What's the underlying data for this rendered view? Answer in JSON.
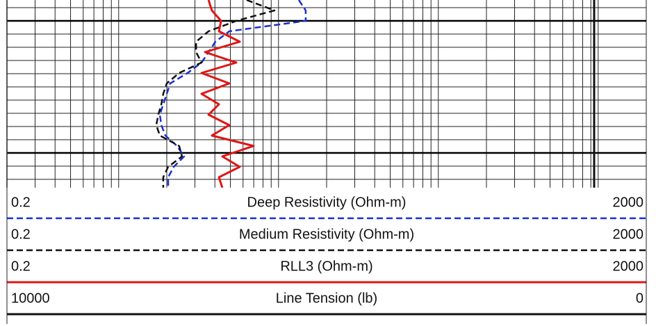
{
  "chart_data": {
    "type": "line",
    "xscale": "log",
    "xlim": [
      0.2,
      2000
    ],
    "xgrid": [
      0.2,
      0.3,
      0.4,
      0.5,
      0.6,
      0.7,
      0.8,
      0.9,
      1,
      2,
      3,
      4,
      5,
      6,
      7,
      8,
      9,
      10,
      20,
      30,
      40,
      50,
      60,
      70,
      80,
      90,
      100,
      200,
      300,
      400,
      500,
      600,
      700,
      800,
      900,
      1000,
      2000
    ],
    "ylim": [
      0,
      270
    ],
    "ygrid": [
      11,
      30,
      49,
      68,
      87,
      106,
      125,
      144,
      163,
      182,
      201,
      220,
      239,
      258
    ],
    "ymajor": [
      30,
      220
    ],
    "depth": [
      0,
      15,
      30,
      45,
      60,
      75,
      90,
      105,
      120,
      135,
      150,
      165,
      180,
      195,
      210,
      225,
      240,
      255,
      270
    ],
    "series": [
      {
        "name": "Deep Resistivity (Ohm-m)",
        "color": "#1a2fd0",
        "style": "dashed",
        "xlim": [
          0.2,
          2000
        ],
        "values": [
          13.4,
          14.8,
          14.8,
          4.92,
          4.03,
          3.65,
          3.3,
          2.7,
          2.1,
          2.0,
          1.9,
          1.81,
          1.85,
          1.96,
          2.32,
          2.57,
          2.21,
          2.04,
          2.04
        ]
      },
      {
        "name": "Medium Resistivity (Ohm-m)",
        "color": "#111111",
        "style": "dashed",
        "xlim": [
          0.2,
          2000
        ],
        "values": [
          6.32,
          9.44,
          5.44,
          3.65,
          3.05,
          3.05,
          3.3,
          2.39,
          2.0,
          1.9,
          1.85,
          1.77,
          1.72,
          1.81,
          2.39,
          2.49,
          2.04,
          1.9,
          1.9
        ]
      },
      {
        "name": "RLL3 (Ohm-m)",
        "color": "#e01515",
        "style": "solid",
        "xlim": [
          0.2,
          2000
        ],
        "values": [
          3.65,
          3.83,
          4.37,
          4.24,
          5.72,
          3.47,
          5.44,
          3.3,
          4.92,
          3.3,
          4.24,
          3.65,
          4.92,
          3.83,
          6.99,
          4.45,
          5.72,
          4.24,
          4.45
        ]
      },
      {
        "name": "Line Tension (lb)",
        "color": "#111111",
        "style": "solid",
        "xscale": "linear",
        "xlim": [
          10000,
          0
        ],
        "values": [
          815,
          815,
          815,
          815,
          815,
          815,
          815,
          815,
          815,
          815,
          815,
          815,
          815,
          815,
          815,
          815,
          815,
          815,
          815
        ]
      }
    ]
  }
}
